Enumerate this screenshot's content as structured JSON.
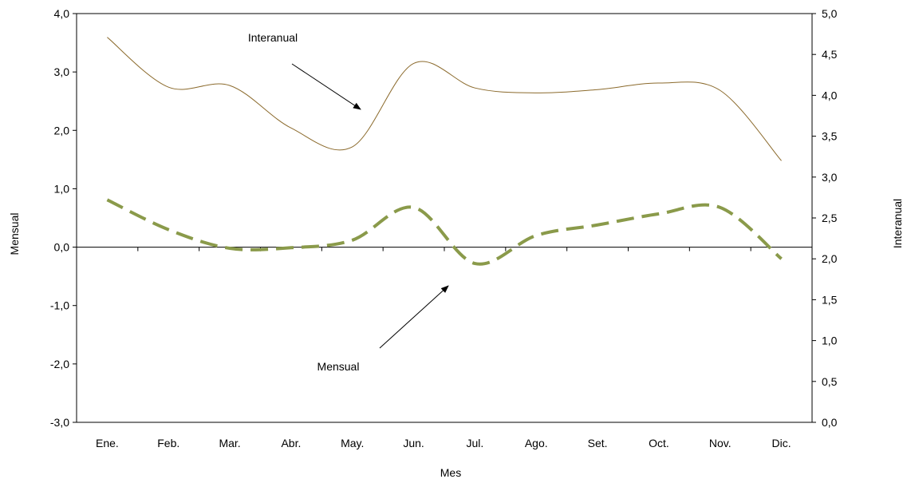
{
  "chart_data": {
    "type": "line",
    "xlabel": "Mes",
    "ylabel_left": "Mensual",
    "ylabel_right": "Interanual",
    "categories": [
      "Ene.",
      "Feb.",
      "Mar.",
      "Abr.",
      "May.",
      "Jun.",
      "Jul.",
      "Ago.",
      "Set.",
      "Oct.",
      "Nov.",
      "Dic."
    ],
    "ylim_left": [
      -3.0,
      4.0
    ],
    "ylim_right": [
      0.0,
      5.0
    ],
    "yticks_left": [
      "-3,0",
      "-2,0",
      "-1,0",
      "0,0",
      "1,0",
      "2,0",
      "3,0",
      "4,0"
    ],
    "yticks_right": [
      "0,0",
      "0,5",
      "1,0",
      "1,5",
      "2,0",
      "2,5",
      "3,0",
      "3,5",
      "4,0",
      "4,5",
      "5,0"
    ],
    "grid": false,
    "series": [
      {
        "name": "Interanual",
        "axis": "right",
        "style": "solid",
        "color": "#8B6A2C",
        "values": [
          4.71,
          4.1,
          4.12,
          3.6,
          3.37,
          4.39,
          4.09,
          4.03,
          4.07,
          4.15,
          4.06,
          3.2
        ]
      },
      {
        "name": "Mensual",
        "axis": "left",
        "style": "dashed",
        "color": "#8A9A4A",
        "values": [
          0.81,
          0.3,
          -0.02,
          -0.01,
          0.12,
          0.68,
          -0.28,
          0.2,
          0.38,
          0.57,
          0.68,
          -0.2
        ]
      }
    ],
    "annotations": [
      {
        "label": "Interanual",
        "target": "Interanual"
      },
      {
        "label": "Mensual",
        "target": "Mensual"
      }
    ]
  }
}
